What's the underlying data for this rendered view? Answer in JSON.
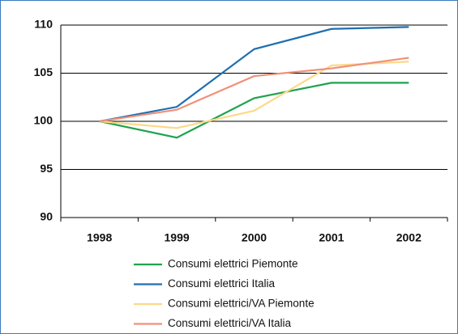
{
  "chart_data": {
    "type": "line",
    "categories": [
      "1998",
      "1999",
      "2000",
      "2001",
      "2002"
    ],
    "series": [
      {
        "name": "Consumi elettrici Piemonte",
        "color": "#1ea34c",
        "values": [
          100,
          98.3,
          102.4,
          104,
          104
        ]
      },
      {
        "name": "Consumi elettrici Italia",
        "color": "#1f6fb0",
        "values": [
          100,
          101.5,
          107.5,
          109.6,
          109.8
        ]
      },
      {
        "name": "Consumi elettrici/VA Piemonte",
        "color": "#fcd98a",
        "values": [
          100,
          99.3,
          101.1,
          105.8,
          106.2
        ]
      },
      {
        "name": "Consumi elettrici/VA Italia",
        "color": "#f0907a",
        "values": [
          100,
          101.2,
          104.7,
          105.5,
          106.6
        ]
      }
    ],
    "ylim": [
      90,
      110
    ],
    "yticks": [
      90,
      95,
      100,
      105,
      110
    ],
    "grid": true
  }
}
